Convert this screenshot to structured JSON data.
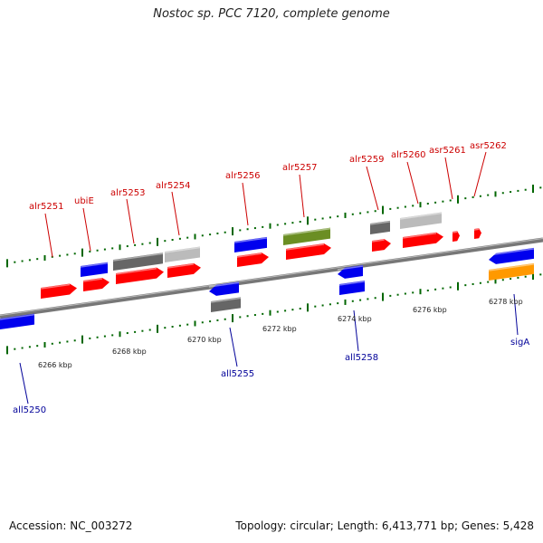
{
  "title": "Nostoc sp. PCC 7120, complete genome",
  "footer": {
    "accession": "Accession: NC_003272",
    "summary": "Topology: circular; Length: 6,413,771 bp; Genes: 5,428"
  },
  "colors": {
    "forward_label": "#cc0000",
    "reverse_label": "#000099",
    "backbone": "#777777",
    "tick": "#006600",
    "red": "#ff0000",
    "blue": "#0000ee",
    "dark_gray": "#666666",
    "light_gray": "#bbbbbb",
    "olive": "#6b8e23",
    "orange": "#ff9900"
  },
  "scale_labels": [
    "6266 kbp",
    "6268 kbp",
    "6270 kbp",
    "6272 kbp",
    "6274 kbp",
    "6276 kbp",
    "6278 kbp"
  ],
  "forward_genes": [
    "alr5251",
    "ubiE",
    "alr5253",
    "alr5254",
    "alr5256",
    "alr5257",
    "alr5259",
    "alr5260",
    "asr5261",
    "asr5262"
  ],
  "reverse_genes": [
    "all5250",
    "all5255",
    "all5258",
    "sigA"
  ]
}
